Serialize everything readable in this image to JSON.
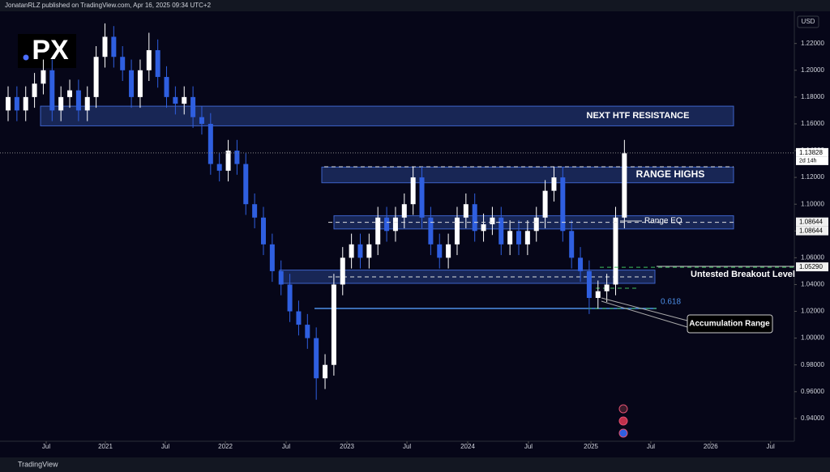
{
  "header": {
    "byline": "JonatanRLZ published on TradingView.com, Apr 16, 2025 09:34 UTC+2"
  },
  "logo": "PX",
  "footer": "TradingView",
  "chart_data": {
    "type": "candlestick",
    "currency": "USD",
    "up_color": "#ffffff",
    "down_color": "#2f5fe0",
    "open": [
      1.17,
      1.18,
      1.17,
      1.18,
      1.19,
      1.2,
      1.17,
      1.18,
      1.185,
      1.17,
      1.18,
      1.21,
      1.225,
      1.21,
      1.2,
      1.18,
      1.2,
      1.215,
      1.195,
      1.18,
      1.175,
      1.18,
      1.165,
      1.16,
      1.13,
      1.125,
      1.14,
      1.13,
      1.1,
      1.09,
      1.07,
      1.05,
      1.04,
      1.02,
      1.01,
      1.0,
      0.97,
      0.98,
      1.04,
      1.06,
      1.07,
      1.06,
      1.07,
      1.09,
      1.08,
      1.09,
      1.1,
      1.12,
      1.09,
      1.07,
      1.06,
      1.07,
      1.09,
      1.1,
      1.08,
      1.085,
      1.09,
      1.07,
      1.08,
      1.07,
      1.08,
      1.09,
      1.11,
      1.12,
      1.08,
      1.06,
      1.05,
      1.03,
      1.035,
      1.04,
      1.09
    ],
    "high": [
      1.188,
      1.188,
      1.188,
      1.198,
      1.208,
      1.208,
      1.188,
      1.193,
      1.193,
      1.188,
      1.218,
      1.235,
      1.233,
      1.218,
      1.208,
      1.208,
      1.228,
      1.223,
      1.203,
      1.188,
      1.188,
      1.188,
      1.173,
      1.168,
      1.138,
      1.148,
      1.148,
      1.138,
      1.108,
      1.098,
      1.078,
      1.058,
      1.048,
      1.028,
      1.018,
      1.008,
      0.988,
      1.048,
      1.068,
      1.078,
      1.078,
      1.078,
      1.098,
      1.098,
      1.098,
      1.108,
      1.128,
      1.128,
      1.098,
      1.078,
      1.078,
      1.098,
      1.108,
      1.108,
      1.093,
      1.098,
      1.098,
      1.088,
      1.088,
      1.088,
      1.098,
      1.118,
      1.128,
      1.128,
      1.088,
      1.068,
      1.058,
      1.043,
      1.048,
      1.098,
      1.148
    ],
    "low": [
      1.162,
      1.162,
      1.162,
      1.172,
      1.182,
      1.162,
      1.162,
      1.172,
      1.162,
      1.162,
      1.172,
      1.202,
      1.202,
      1.192,
      1.172,
      1.172,
      1.192,
      1.187,
      1.172,
      1.167,
      1.167,
      1.157,
      1.152,
      1.122,
      1.117,
      1.117,
      1.122,
      1.092,
      1.082,
      1.062,
      1.042,
      1.032,
      1.012,
      1.002,
      0.992,
      0.954,
      0.962,
      0.972,
      1.032,
      1.052,
      1.052,
      1.052,
      1.062,
      1.072,
      1.072,
      1.082,
      1.092,
      1.082,
      1.062,
      1.052,
      1.052,
      1.062,
      1.082,
      1.072,
      1.072,
      1.077,
      1.062,
      1.062,
      1.062,
      1.062,
      1.072,
      1.082,
      1.102,
      1.072,
      1.052,
      1.042,
      1.018,
      1.022,
      1.027,
      1.032,
      1.082
    ],
    "close": [
      1.18,
      1.17,
      1.18,
      1.19,
      1.2,
      1.17,
      1.18,
      1.185,
      1.17,
      1.18,
      1.21,
      1.225,
      1.21,
      1.2,
      1.18,
      1.2,
      1.215,
      1.195,
      1.18,
      1.175,
      1.18,
      1.165,
      1.16,
      1.13,
      1.125,
      1.14,
      1.13,
      1.1,
      1.09,
      1.07,
      1.05,
      1.04,
      1.02,
      1.01,
      1.0,
      0.97,
      0.98,
      1.04,
      1.06,
      1.07,
      1.06,
      1.07,
      1.09,
      1.08,
      1.09,
      1.1,
      1.12,
      1.09,
      1.07,
      1.06,
      1.07,
      1.09,
      1.1,
      1.08,
      1.085,
      1.09,
      1.07,
      1.08,
      1.07,
      1.08,
      1.09,
      1.11,
      1.12,
      1.08,
      1.06,
      1.05,
      1.03,
      1.035,
      1.04,
      1.09,
      1.138
    ],
    "xlim": [
      -0.92,
      89.3
    ],
    "xticks": [
      {
        "value": 4.33,
        "label": "Jul"
      },
      {
        "value": 11.05,
        "label": "2021"
      },
      {
        "value": 17.86,
        "label": "Jul"
      },
      {
        "value": 24.68,
        "label": "2022"
      },
      {
        "value": 31.58,
        "label": "Jul"
      },
      {
        "value": 38.49,
        "label": "2023"
      },
      {
        "value": 45.3,
        "label": "Jul"
      },
      {
        "value": 52.2,
        "label": "2024"
      },
      {
        "value": 59.1,
        "label": "Jul"
      },
      {
        "value": 66.2,
        "label": "2025"
      },
      {
        "value": 73.0,
        "label": "Jul"
      },
      {
        "value": 79.8,
        "label": "2026"
      },
      {
        "value": 86.6,
        "label": "Jul"
      }
    ],
    "ylim": [
      0.923,
      1.244
    ],
    "yticks": [
      {
        "value": 1.22,
        "label": "1.22000"
      },
      {
        "value": 1.2,
        "label": "1.20000"
      },
      {
        "value": 1.18,
        "label": "1.18000"
      },
      {
        "value": 1.16,
        "label": "1.16000"
      },
      {
        "value": 1.14,
        "label": "1.14000"
      },
      {
        "value": 1.12,
        "label": "1.12000"
      },
      {
        "value": 1.1,
        "label": "1.10000"
      },
      {
        "value": 1.08,
        "label": "1.08000"
      },
      {
        "value": 1.06,
        "label": "1.06000"
      },
      {
        "value": 1.04,
        "label": "1.04000"
      },
      {
        "value": 1.02,
        "label": "1.02000"
      },
      {
        "value": 1.0,
        "label": "1.00000"
      },
      {
        "value": 0.98,
        "label": "0.98000"
      },
      {
        "value": 0.96,
        "label": "0.96000"
      },
      {
        "value": 0.94,
        "label": "0.94000"
      }
    ],
    "zones": [
      {
        "label": "NEXT HTF RESISTANCE",
        "range": [
          1.1585,
          1.1732
        ]
      },
      {
        "label": "RANGE HIGHS",
        "range": [
          1.116,
          1.1277
        ]
      },
      {
        "range": [
          1.0815,
          1.0914
        ]
      },
      {
        "range": [
          1.0409,
          1.0508
        ]
      }
    ],
    "price_labels": [
      {
        "value": 1.13828,
        "label": "1.13828",
        "countdown": "2d 14h"
      },
      {
        "value": 1.08644,
        "label": "1.08644"
      },
      {
        "value": 1.08644,
        "label": "1.08644"
      },
      {
        "value": 1.0529,
        "label": "1.05290"
      }
    ],
    "annotations": {
      "range_eq": "Range EQ",
      "breakout": "Untested Breakout Level",
      "fib": "0.618",
      "accumulation": "Accumulation Range"
    }
  }
}
